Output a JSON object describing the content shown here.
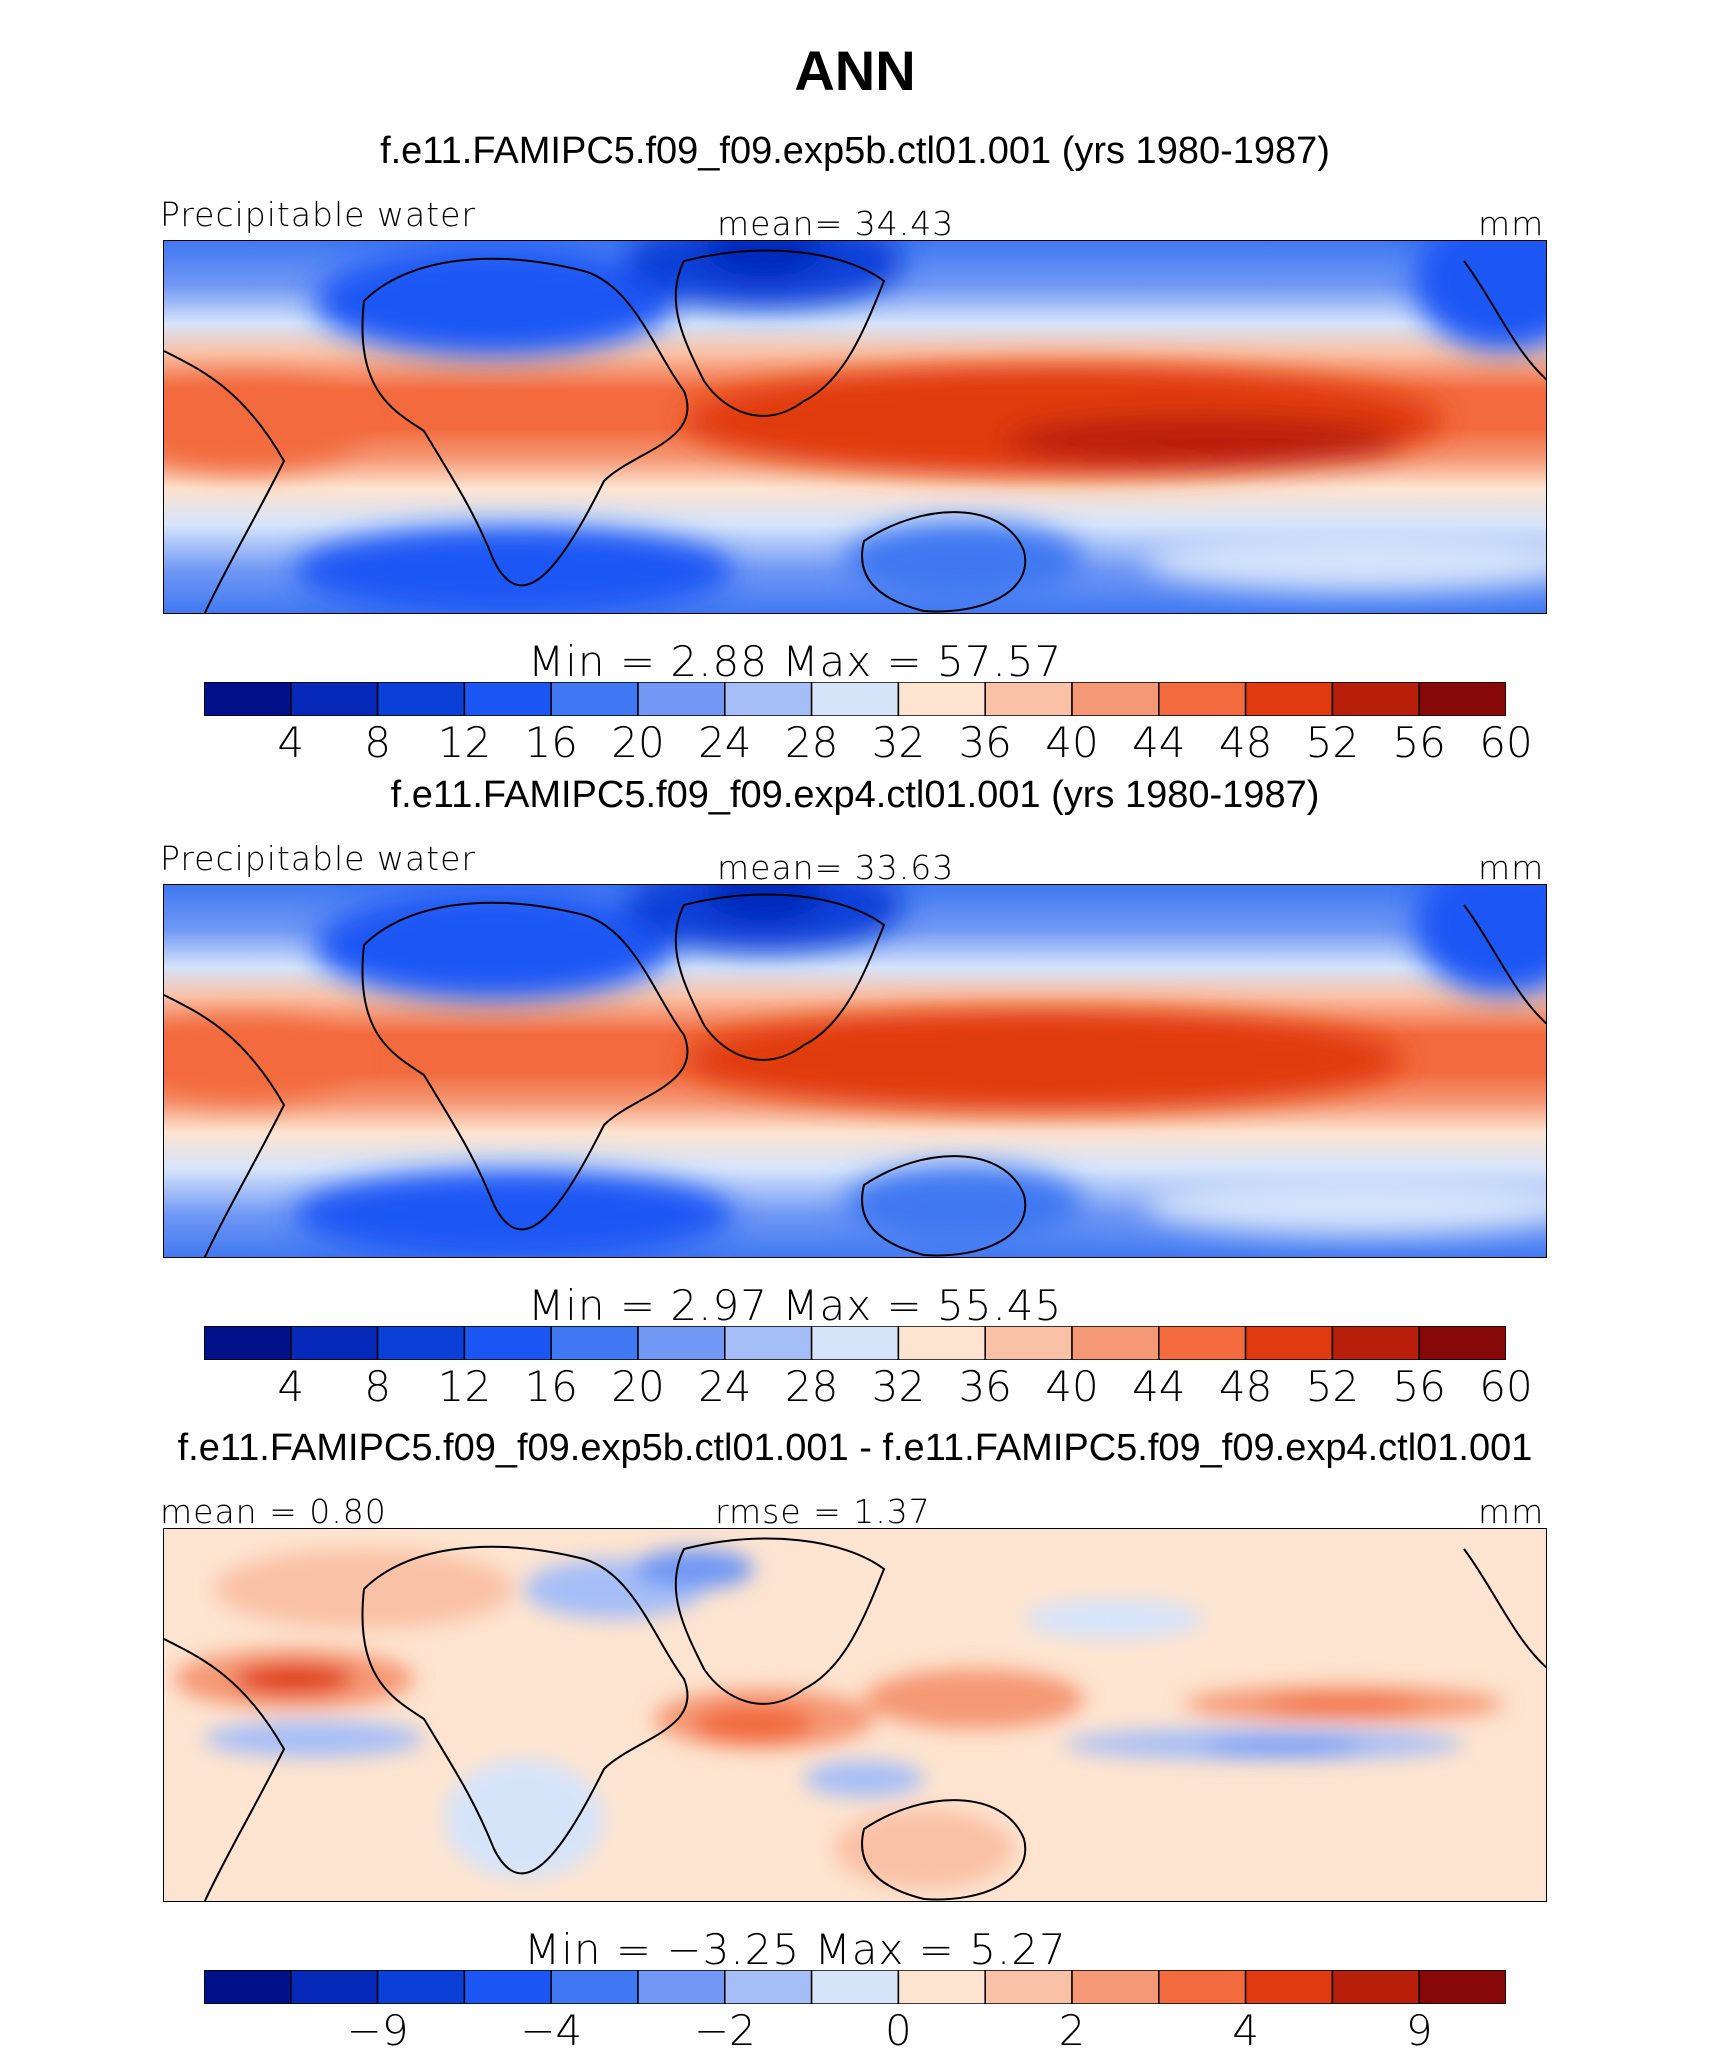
{
  "title": "ANN",
  "panels": [
    {
      "case_title": "f.e11.FAMIPC5.f09_f09.exp5b.ctl01.001 (yrs 1980-1987)",
      "variable": "Precipitable water",
      "center_label": "mean=   34.43",
      "units": "mm",
      "minmax": "Min  =     2.88  Max  =    57.57",
      "colorbar": {
        "colors": [
          "#00118a",
          "#0628b8",
          "#0a3fd8",
          "#1b56f4",
          "#3f78f2",
          "#7198f4",
          "#a6bef7",
          "#d6e4fa",
          "#fde4d0",
          "#f9c1a6",
          "#f59875",
          "#f26a3e",
          "#e03a10",
          "#b81f0a",
          "#870808"
        ],
        "ticks": [
          "4",
          "8",
          "12",
          "16",
          "20",
          "24",
          "28",
          "32",
          "36",
          "40",
          "44",
          "48",
          "52",
          "56",
          "60"
        ]
      }
    },
    {
      "case_title": "f.e11.FAMIPC5.f09_f09.exp4.ctl01.001 (yrs 1980-1987)",
      "variable": "Precipitable water",
      "center_label": "mean=   33.63",
      "units": "mm",
      "minmax": "Min  =     2.97  Max  =    55.45",
      "colorbar": {
        "colors": [
          "#00118a",
          "#0628b8",
          "#0a3fd8",
          "#1b56f4",
          "#3f78f2",
          "#7198f4",
          "#a6bef7",
          "#d6e4fa",
          "#fde4d0",
          "#f9c1a6",
          "#f59875",
          "#f26a3e",
          "#e03a10",
          "#b81f0a",
          "#870808"
        ],
        "ticks": [
          "4",
          "8",
          "12",
          "16",
          "20",
          "24",
          "28",
          "32",
          "36",
          "40",
          "44",
          "48",
          "52",
          "56",
          "60"
        ]
      }
    },
    {
      "case_title": "f.e11.FAMIPC5.f09_f09.exp5b.ctl01.001 - f.e11.FAMIPC5.f09_f09.exp4.ctl01.001",
      "variable": "mean =    0.80",
      "center_label": "rmse  =     1.37",
      "units": "mm",
      "minmax": "Min  =   −3.25  Max  =     5.27",
      "colorbar": {
        "colors": [
          "#00118a",
          "#0628b8",
          "#0a3fd8",
          "#1b56f4",
          "#3f78f2",
          "#7198f4",
          "#a6bef7",
          "#d6e4fa",
          "#fde4d0",
          "#f9c1a6",
          "#f59875",
          "#f26a3e",
          "#e03a10",
          "#b81f0a",
          "#870808"
        ],
        "ticks": [
          "−9",
          "−4",
          "−2",
          "0",
          "2",
          "4",
          "9"
        ]
      }
    }
  ],
  "chart_data": [
    {
      "type": "heatmap",
      "title": "f.e11.FAMIPC5.f09_f09.exp5b.ctl01.001 (yrs 1980-1987)",
      "variable": "Precipitable water",
      "units": "mm",
      "mean": 34.43,
      "min": 2.88,
      "max": 57.57,
      "contour_levels": [
        4,
        8,
        12,
        16,
        20,
        24,
        28,
        32,
        36,
        40,
        44,
        48,
        52,
        56,
        60
      ]
    },
    {
      "type": "heatmap",
      "title": "f.e11.FAMIPC5.f09_f09.exp4.ctl01.001 (yrs 1980-1987)",
      "variable": "Precipitable water",
      "units": "mm",
      "mean": 33.63,
      "min": 2.97,
      "max": 55.45,
      "contour_levels": [
        4,
        8,
        12,
        16,
        20,
        24,
        28,
        32,
        36,
        40,
        44,
        48,
        52,
        56,
        60
      ]
    },
    {
      "type": "heatmap",
      "title": "f.e11.FAMIPC5.f09_f09.exp5b.ctl01.001 - f.e11.FAMIPC5.f09_f09.exp4.ctl01.001",
      "units": "mm",
      "mean": 0.8,
      "rmse": 1.37,
      "min": -3.25,
      "max": 5.27,
      "contour_levels": [
        -9,
        -4,
        -2,
        0,
        2,
        4,
        9
      ]
    }
  ]
}
